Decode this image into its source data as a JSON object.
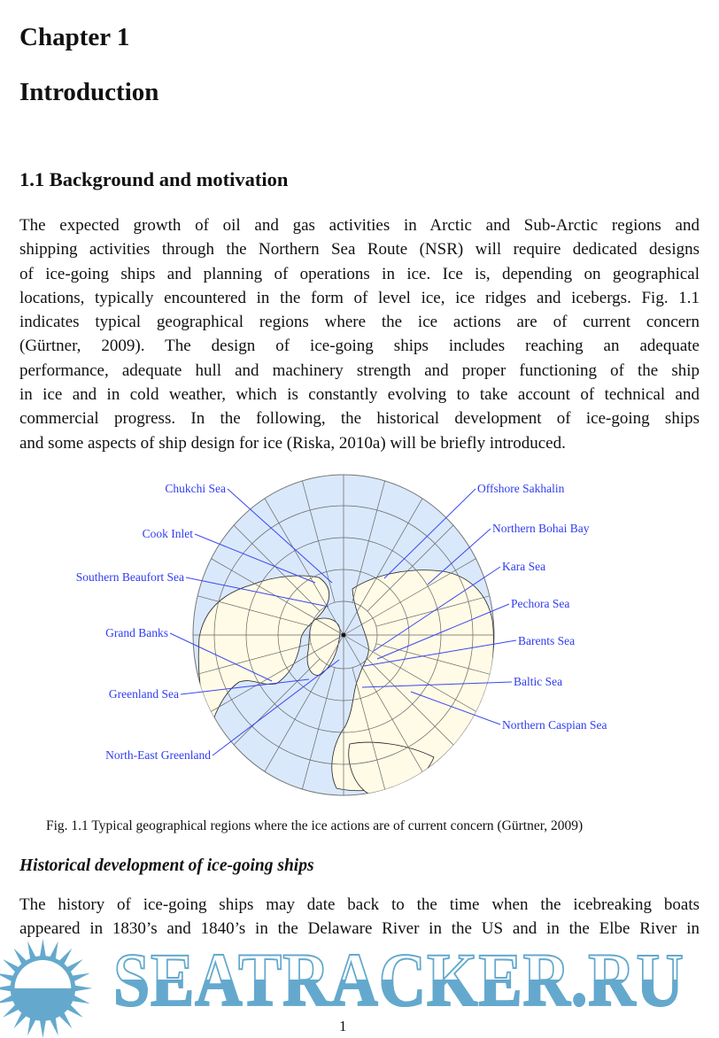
{
  "headings": {
    "chapter": "Chapter 1",
    "title": "Introduction",
    "section": "1.1 Background and motivation",
    "subsection": "Historical development of ice-going ships"
  },
  "paragraph1": [
    "The expected growth of oil and gas activities in Arctic and Sub-Arctic regions and",
    "shipping activities through the Northern Sea Route (NSR) will require dedicated designs",
    "of ice-going ships and planning of operations in ice. Ice is, depending on geographical",
    "locations, typically encountered in the form of level ice, ice ridges and icebergs. Fig. 1.1",
    "indicates typical geographical regions where the ice actions are of current concern",
    "(Gürtner, 2009). The design of ice-going ships includes reaching an adequate",
    "performance, adequate hull and machinery strength and proper functioning of the ship",
    "in ice and in cold weather, which is constantly evolving to take account of technical and",
    "commercial progress. In the following, the historical development of ice-going ships",
    "and some aspects of ship design for ice (Riska, 2010a) will be briefly introduced."
  ],
  "figure": {
    "labels_left": [
      "Chukchi Sea",
      "Cook Inlet",
      "Southern Beaufort Sea",
      "Grand Banks",
      "Greenland Sea",
      "North-East Greenland"
    ],
    "labels_right": [
      "Offshore Sakhalin",
      "Northern Bohai Bay",
      "Kara Sea",
      "Pechora Sea",
      "Barents Sea",
      "Baltic Sea",
      "Northern Caspian Sea"
    ],
    "caption": "Fig. 1.1 Typical geographical regions where the ice actions are of current concern (Gürtner, 2009)",
    "colors": {
      "ocean": "#d9e8fb",
      "land": "#fffbe6",
      "label": "#2f3cf0"
    }
  },
  "paragraph2": [
    "The history of ice-going ships may date back to the time when the icebreaking boats",
    "appeared in 1830’s and 1840’s in the Delaware River in the US and in the Elbe River in"
  ],
  "page_number": "1",
  "watermark": {
    "text": "SEATRACKER.RU",
    "color": "#64a9cd"
  }
}
